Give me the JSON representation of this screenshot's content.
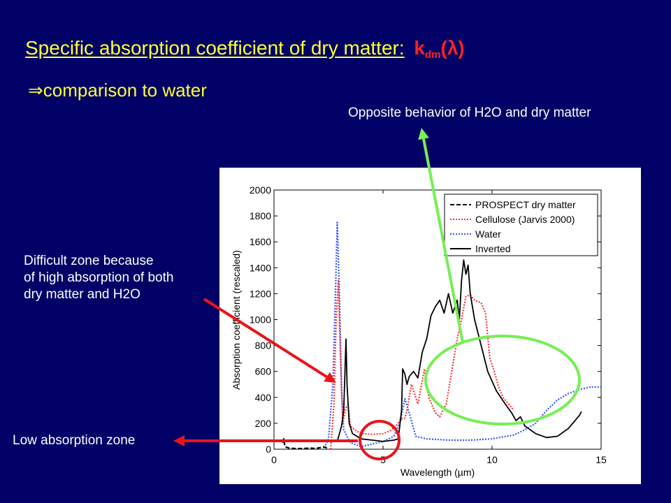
{
  "slide": {
    "title": "Specific absorption coefficient of dry matter",
    "title_colon": ":",
    "title_symbol_k": "k",
    "title_symbol_sub": "dm",
    "title_symbol_arg": "(λ)",
    "subtitle_arrow": "⇒",
    "subtitle": "comparison to water",
    "annotations": {
      "opposite": "Opposite behavior of H2O and dry matter",
      "difficult_lines": [
        "Difficult zone because",
        "of high absorption of both",
        "dry matter and H2O"
      ],
      "low": "Low absorption zone"
    },
    "colors": {
      "background": "#000066",
      "title": "#ffff33",
      "symbol": "#ff2222",
      "arrow_red": "#e8141a",
      "arrow_green": "#77ee55",
      "ellipse_red": "#e8141a",
      "ellipse_green": "#77ee55"
    }
  },
  "chart_data": {
    "type": "line",
    "xlabel": "Wavelength (µm)",
    "ylabel": "Absorption coefficient (rescaled)",
    "xlim": [
      0,
      15
    ],
    "ylim": [
      0,
      2000
    ],
    "xticks": [
      0,
      5,
      10,
      15
    ],
    "yticks": [
      0,
      200,
      400,
      600,
      800,
      1000,
      1200,
      1400,
      1600,
      1800,
      2000
    ],
    "grid": false,
    "legend_position": "top-right",
    "series": [
      {
        "name": "PROSPECT dry matter",
        "color": "#000000",
        "dash": "dashed",
        "points": [
          [
            0.4,
            50
          ],
          [
            0.45,
            80
          ],
          [
            0.5,
            20
          ],
          [
            0.7,
            8
          ],
          [
            1.0,
            5
          ],
          [
            1.4,
            6
          ],
          [
            1.7,
            8
          ],
          [
            1.9,
            5
          ],
          [
            2.1,
            12
          ],
          [
            2.3,
            18
          ],
          [
            2.45,
            8
          ],
          [
            2.5,
            5
          ]
        ]
      },
      {
        "name": "Cellulose (Jarvis 2000)",
        "color": "#ff3333",
        "dash": "dotted",
        "points": [
          [
            2.6,
            0
          ],
          [
            2.75,
            350
          ],
          [
            2.85,
            1000
          ],
          [
            2.95,
            1300
          ],
          [
            3.05,
            700
          ],
          [
            3.15,
            200
          ],
          [
            3.3,
            320
          ],
          [
            3.4,
            340
          ],
          [
            3.5,
            180
          ],
          [
            3.7,
            150
          ],
          [
            4.0,
            120
          ],
          [
            4.5,
            115
          ],
          [
            5.0,
            120
          ],
          [
            5.3,
            140
          ],
          [
            5.6,
            180
          ],
          [
            5.8,
            230
          ],
          [
            6.0,
            240
          ],
          [
            6.1,
            300
          ],
          [
            6.3,
            500
          ],
          [
            6.6,
            350
          ],
          [
            6.9,
            620
          ],
          [
            7.1,
            400
          ],
          [
            7.4,
            280
          ],
          [
            7.6,
            250
          ],
          [
            7.9,
            350
          ],
          [
            8.2,
            650
          ],
          [
            8.4,
            850
          ],
          [
            8.6,
            1000
          ],
          [
            8.8,
            1180
          ],
          [
            9.0,
            1190
          ],
          [
            9.2,
            1150
          ],
          [
            9.5,
            1130
          ],
          [
            9.7,
            1050
          ],
          [
            9.9,
            700
          ],
          [
            10.1,
            600
          ],
          [
            10.3,
            480
          ],
          [
            10.5,
            400
          ],
          [
            10.8,
            340
          ],
          [
            11.0,
            300
          ]
        ]
      },
      {
        "name": "Water",
        "color": "#3355ff",
        "dash": "dotted",
        "points": [
          [
            2.3,
            10
          ],
          [
            2.5,
            80
          ],
          [
            2.7,
            500
          ],
          [
            2.8,
            1100
          ],
          [
            2.9,
            1750
          ],
          [
            3.0,
            1200
          ],
          [
            3.1,
            450
          ],
          [
            3.2,
            150
          ],
          [
            3.5,
            50
          ],
          [
            4.0,
            20
          ],
          [
            4.5,
            40
          ],
          [
            5.0,
            60
          ],
          [
            5.5,
            100
          ],
          [
            5.8,
            220
          ],
          [
            6.0,
            390
          ],
          [
            6.2,
            280
          ],
          [
            6.5,
            100
          ],
          [
            7.0,
            80
          ],
          [
            8.0,
            70
          ],
          [
            9.0,
            70
          ],
          [
            10.0,
            80
          ],
          [
            11.0,
            110
          ],
          [
            11.5,
            150
          ],
          [
            12.0,
            200
          ],
          [
            12.5,
            300
          ],
          [
            13.0,
            380
          ],
          [
            13.5,
            430
          ],
          [
            14.0,
            460
          ],
          [
            14.5,
            480
          ],
          [
            15.0,
            480
          ]
        ]
      },
      {
        "name": "Inverted",
        "color": "#000000",
        "dash": "solid",
        "points": [
          [
            2.9,
            60
          ],
          [
            3.0,
            120
          ],
          [
            3.1,
            180
          ],
          [
            3.2,
            300
          ],
          [
            3.3,
            850
          ],
          [
            3.35,
            500
          ],
          [
            3.45,
            200
          ],
          [
            3.6,
            120
          ],
          [
            4.0,
            80
          ],
          [
            4.5,
            70
          ],
          [
            5.0,
            60
          ],
          [
            5.5,
            70
          ],
          [
            5.7,
            80
          ],
          [
            5.85,
            300
          ],
          [
            5.9,
            620
          ],
          [
            6.0,
            580
          ],
          [
            6.1,
            500
          ],
          [
            6.2,
            560
          ],
          [
            6.4,
            600
          ],
          [
            6.6,
            550
          ],
          [
            6.8,
            750
          ],
          [
            7.0,
            850
          ],
          [
            7.2,
            1030
          ],
          [
            7.4,
            1100
          ],
          [
            7.6,
            1150
          ],
          [
            7.8,
            1050
          ],
          [
            8.0,
            1200
          ],
          [
            8.2,
            1050
          ],
          [
            8.4,
            1150
          ],
          [
            8.5,
            1000
          ],
          [
            8.6,
            1300
          ],
          [
            8.7,
            1460
          ],
          [
            8.8,
            1350
          ],
          [
            8.9,
            1420
          ],
          [
            9.0,
            1200
          ],
          [
            9.2,
            1000
          ],
          [
            9.5,
            800
          ],
          [
            9.8,
            600
          ],
          [
            10.2,
            450
          ],
          [
            10.6,
            350
          ],
          [
            10.9,
            280
          ],
          [
            11.1,
            220
          ],
          [
            11.3,
            250
          ],
          [
            11.5,
            180
          ],
          [
            12.0,
            120
          ],
          [
            12.5,
            90
          ],
          [
            13.0,
            100
          ],
          [
            13.5,
            160
          ],
          [
            14.0,
            260
          ],
          [
            14.1,
            290
          ]
        ]
      }
    ]
  }
}
